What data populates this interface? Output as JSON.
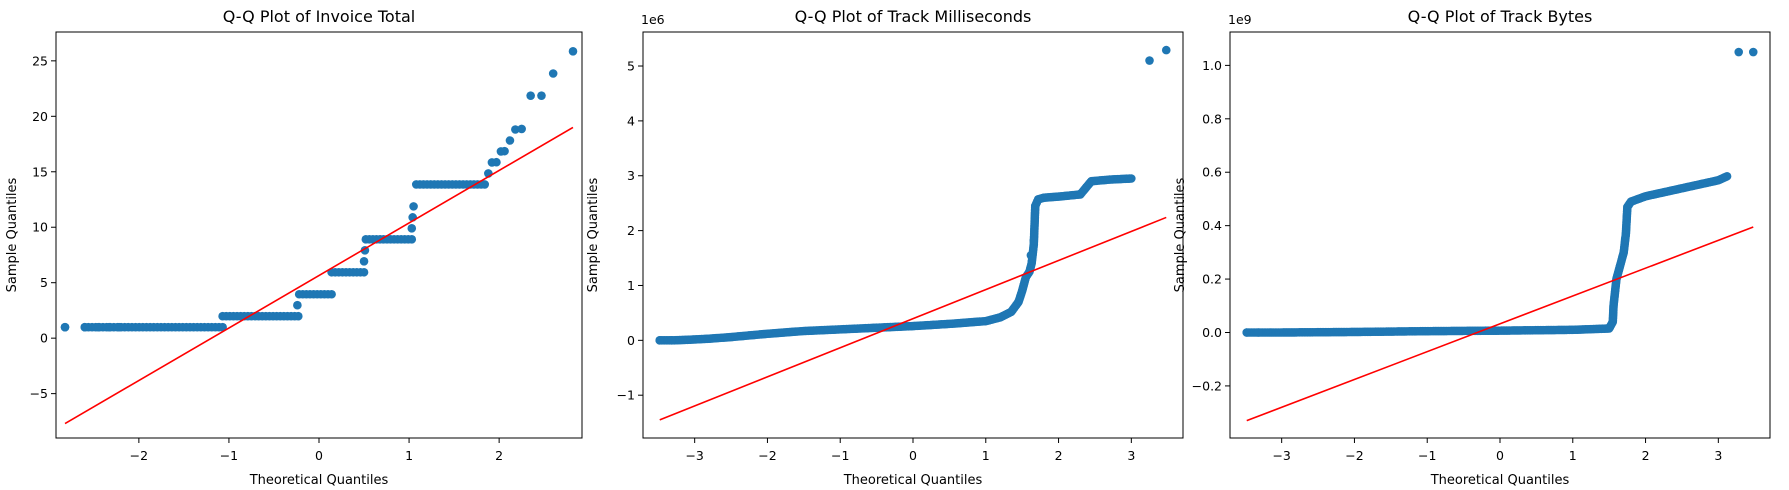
{
  "colors": {
    "points": "#1f77b4",
    "line": "#ff0000",
    "axes": "#000000"
  },
  "chart_data": [
    {
      "type": "scatter",
      "title": "Q-Q Plot of Invoice Total",
      "xlabel": "Theoretical Quantiles",
      "ylabel": "Sample Quantiles",
      "xlim": [
        -2.92,
        2.92
      ],
      "ylim": [
        -9.0,
        27.6
      ],
      "xticks": [
        -2,
        -1,
        0,
        1,
        2
      ],
      "yticks": [
        -5,
        0,
        5,
        10,
        15,
        20,
        25
      ],
      "ytick_labels": [
        "−5",
        "0",
        "5",
        "10",
        "15",
        "20",
        "25"
      ],
      "xtick_labels": [
        "−2",
        "−1",
        "0",
        "1",
        "2"
      ],
      "offset_label": "",
      "fit_line": [
        [
          -2.82,
          -7.7
        ],
        [
          2.82,
          19.0
        ]
      ],
      "n_points": 412,
      "steps": [
        {
          "x0": -2.82,
          "x1": -2.82,
          "y": 0.99
        },
        {
          "x0": -2.6,
          "x1": -1.07,
          "y": 0.99
        },
        {
          "x0": -1.07,
          "x1": -0.23,
          "y": 1.98
        },
        {
          "x0": -0.22,
          "x1": 0.14,
          "y": 3.96
        },
        {
          "x0": 0.14,
          "x1": 0.5,
          "y": 5.94
        },
        {
          "x0": 0.52,
          "x1": 1.03,
          "y": 8.91
        },
        {
          "x0": 1.08,
          "x1": 1.84,
          "y": 13.86
        }
      ],
      "extra_points": [
        [
          -0.24,
          2.97
        ],
        [
          0.5,
          6.93
        ],
        [
          0.51,
          7.92
        ],
        [
          1.03,
          9.9
        ],
        [
          1.04,
          10.89
        ],
        [
          1.05,
          11.88
        ],
        [
          1.88,
          14.85
        ],
        [
          1.92,
          15.84
        ],
        [
          1.97,
          15.86
        ],
        [
          2.02,
          16.83
        ],
        [
          2.06,
          16.86
        ],
        [
          2.12,
          17.82
        ],
        [
          2.18,
          18.81
        ],
        [
          2.25,
          18.86
        ],
        [
          2.35,
          21.86
        ],
        [
          2.47,
          21.86
        ],
        [
          2.6,
          23.86
        ],
        [
          2.82,
          25.86
        ]
      ]
    },
    {
      "type": "scatter",
      "title": "Q-Q Plot of Track Milliseconds",
      "xlabel": "Theoretical Quantiles",
      "ylabel": "Sample Quantiles",
      "xlim": [
        -3.71,
        3.71
      ],
      "ylim": [
        -1.78,
        5.62
      ],
      "xticks": [
        -3,
        -2,
        -1,
        0,
        1,
        2,
        3
      ],
      "xtick_labels": [
        "−3",
        "−2",
        "−1",
        "0",
        "1",
        "2",
        "3"
      ],
      "yticks": [
        -1,
        0,
        1,
        2,
        3,
        4,
        5
      ],
      "ytick_labels": [
        "−1",
        "0",
        "1",
        "2",
        "3",
        "4",
        "5"
      ],
      "offset_label": "1e6",
      "fit_line": [
        [
          -3.48,
          -1.45
        ],
        [
          3.48,
          2.24
        ]
      ],
      "curve": [
        [
          -3.48,
          0.0
        ],
        [
          -3.3,
          0.0
        ],
        [
          -3.1,
          0.01
        ],
        [
          -2.8,
          0.03
        ],
        [
          -2.5,
          0.06
        ],
        [
          -2.0,
          0.12
        ],
        [
          -1.5,
          0.17
        ],
        [
          -1.0,
          0.2
        ],
        [
          -0.5,
          0.23
        ],
        [
          0.0,
          0.26
        ],
        [
          0.5,
          0.3
        ],
        [
          1.0,
          0.35
        ],
        [
          1.2,
          0.42
        ],
        [
          1.35,
          0.52
        ],
        [
          1.45,
          0.7
        ],
        [
          1.5,
          0.9
        ],
        [
          1.55,
          1.15
        ],
        [
          1.6,
          1.25
        ],
        [
          1.63,
          1.4
        ],
        [
          1.66,
          1.75
        ],
        [
          1.68,
          2.45
        ],
        [
          1.72,
          2.57
        ],
        [
          1.8,
          2.6
        ],
        [
          2.0,
          2.62
        ],
        [
          2.3,
          2.66
        ],
        [
          2.45,
          2.9
        ],
        [
          2.7,
          2.93
        ],
        [
          3.0,
          2.95
        ]
      ],
      "extra_points": [
        [
          -3.48,
          0.0
        ],
        [
          -3.32,
          0.0
        ],
        [
          3.25,
          5.1
        ],
        [
          3.48,
          5.29
        ],
        [
          1.66,
          1.82
        ],
        [
          1.62,
          1.55
        ]
      ]
    },
    {
      "type": "scatter",
      "title": "Q-Q Plot of Track Bytes",
      "xlabel": "Theoretical Quantiles",
      "ylabel": "Sample Quantiles",
      "xlim": [
        -3.71,
        3.71
      ],
      "ylim": [
        -0.395,
        1.125
      ],
      "xticks": [
        -3,
        -2,
        -1,
        0,
        1,
        2,
        3
      ],
      "xtick_labels": [
        "−3",
        "−2",
        "−1",
        "0",
        "1",
        "2",
        "3"
      ],
      "yticks": [
        -0.2,
        0.0,
        0.2,
        0.4,
        0.6,
        0.8,
        1.0
      ],
      "ytick_labels": [
        "−0.2",
        "0.0",
        "0.2",
        "0.4",
        "0.6",
        "0.8",
        "1.0"
      ],
      "offset_label": "1e9",
      "fit_line": [
        [
          -3.48,
          -0.33
        ],
        [
          3.48,
          0.395
        ]
      ],
      "curve": [
        [
          -3.48,
          0.0
        ],
        [
          -3.0,
          0.0
        ],
        [
          -2.0,
          0.002
        ],
        [
          -1.0,
          0.005
        ],
        [
          0.0,
          0.007
        ],
        [
          1.0,
          0.01
        ],
        [
          1.5,
          0.015
        ],
        [
          1.55,
          0.04
        ],
        [
          1.56,
          0.1
        ],
        [
          1.6,
          0.2
        ],
        [
          1.65,
          0.25
        ],
        [
          1.7,
          0.3
        ],
        [
          1.73,
          0.37
        ],
        [
          1.75,
          0.47
        ],
        [
          1.8,
          0.49
        ],
        [
          2.0,
          0.51
        ],
        [
          2.5,
          0.54
        ],
        [
          3.0,
          0.57
        ],
        [
          3.12,
          0.585
        ]
      ],
      "extra_points": [
        [
          -3.48,
          0.0
        ],
        [
          -3.32,
          0.0
        ],
        [
          3.28,
          1.05
        ],
        [
          3.48,
          1.05
        ],
        [
          1.72,
          0.35
        ]
      ]
    }
  ]
}
